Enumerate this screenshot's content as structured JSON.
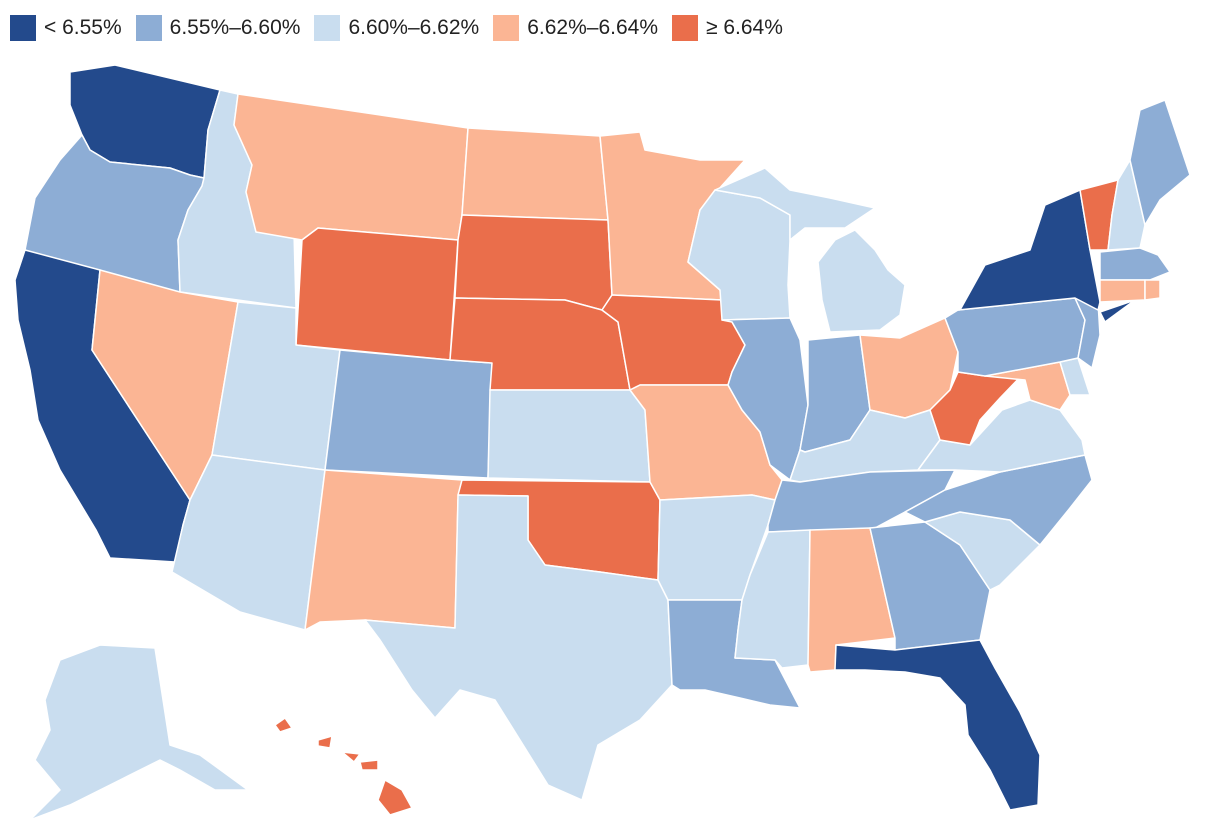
{
  "legend": {
    "bins": [
      {
        "label": "< 6.55%",
        "color": "#234a8c"
      },
      {
        "label": "6.55%–6.60%",
        "color": "#8dadd5"
      },
      {
        "label": "6.60%–6.62%",
        "color": "#c9ddef"
      },
      {
        "label": "6.62%–6.64%",
        "color": "#fbb594"
      },
      {
        "label": "≥ 6.64%",
        "color": "#ea6e4b"
      }
    ]
  },
  "states": {
    "WA": 0,
    "OR": 1,
    "CA": 0,
    "ID": 2,
    "NV": 3,
    "MT": 3,
    "WY": 4,
    "UT": 2,
    "AZ": 2,
    "CO": 1,
    "NM": 3,
    "ND": 3,
    "SD": 4,
    "NE": 4,
    "KS": 2,
    "OK": 4,
    "TX": 2,
    "MN": 3,
    "IA": 4,
    "MO": 3,
    "AR": 2,
    "LA": 1,
    "WI": 2,
    "IL": 1,
    "MI": 2,
    "IN": 1,
    "OH": 3,
    "KY": 2,
    "TN": 1,
    "MS": 2,
    "AL": 3,
    "GA": 1,
    "FL": 0,
    "SC": 2,
    "NC": 1,
    "VA": 2,
    "WV": 4,
    "MD": 3,
    "DE": 2,
    "PA": 1,
    "NJ": 1,
    "NY": 0,
    "VT": 4,
    "NH": 2,
    "ME": 1,
    "MA": 1,
    "CT": 3,
    "RI": 3,
    "AK": 2,
    "HI": 4
  }
}
